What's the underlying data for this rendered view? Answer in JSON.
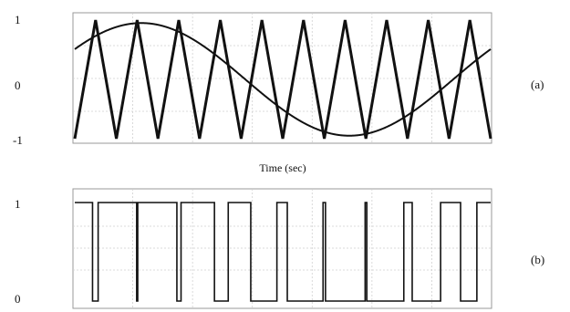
{
  "chart_data": [
    {
      "type": "line",
      "panel_label": "(a)",
      "xlabel": "Time (sec)",
      "ylabel": "",
      "y_tick_labels": [
        "1",
        "0",
        "-1"
      ],
      "y_ticks": [
        1,
        0,
        -1
      ],
      "ylim": [
        -1,
        1
      ],
      "x_tick_labels": [],
      "grid": true,
      "series": [
        {
          "kind": "triangle-carrier",
          "cycles": 10,
          "amplitude": 1,
          "start_value": -1
        },
        {
          "kind": "sine-reference",
          "amplitude": 0.95,
          "cycles": 1,
          "phase": 0.09
        }
      ]
    },
    {
      "type": "line",
      "panel_label": "(b)",
      "xlabel": "",
      "ylabel": "",
      "y_tick_labels": [
        "1",
        "0"
      ],
      "y_ticks": [
        1,
        0
      ],
      "ylim": [
        0,
        1
      ],
      "grid": true,
      "series": [
        {
          "kind": "pwm-output",
          "derived_from": "sine-reference vs triangle-carrier",
          "levels": [
            0,
            1
          ]
        }
      ]
    }
  ]
}
